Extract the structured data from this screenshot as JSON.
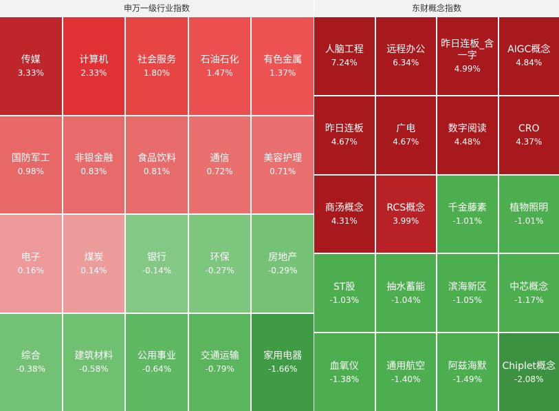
{
  "panels": [
    {
      "title": "申万一级行业指数",
      "tiles": [
        {
          "name": "传媒",
          "change": "3.33%",
          "color": "#bf262c"
        },
        {
          "name": "计算机",
          "change": "2.33%",
          "color": "#e03234"
        },
        {
          "name": "社会服务",
          "change": "1.80%",
          "color": "#e74444"
        },
        {
          "name": "石油石化",
          "change": "1.47%",
          "color": "#eb4f4f"
        },
        {
          "name": "有色金属",
          "change": "1.37%",
          "color": "#ed5353"
        },
        {
          "name": "国防军工",
          "change": "0.98%",
          "color": "#e86868"
        },
        {
          "name": "非银金融",
          "change": "0.83%",
          "color": "#e86b6b"
        },
        {
          "name": "食品饮料",
          "change": "0.81%",
          "color": "#e96c6c"
        },
        {
          "name": "通信",
          "change": "0.72%",
          "color": "#ea6f6f"
        },
        {
          "name": "美容护理",
          "change": "0.71%",
          "color": "#ea7070"
        },
        {
          "name": "电子",
          "change": "0.16%",
          "color": "#ee999b"
        },
        {
          "name": "煤炭",
          "change": "0.14%",
          "color": "#ee9b9c"
        },
        {
          "name": "银行",
          "change": "-0.14%",
          "color": "#83c985"
        },
        {
          "name": "环保",
          "change": "-0.27%",
          "color": "#7cc67e"
        },
        {
          "name": "房地产",
          "change": "-0.29%",
          "color": "#76c378"
        },
        {
          "name": "综合",
          "change": "-0.38%",
          "color": "#74c276"
        },
        {
          "name": "建筑材料",
          "change": "-0.58%",
          "color": "#70c072"
        },
        {
          "name": "公用事业",
          "change": "-0.64%",
          "color": "#5fb962"
        },
        {
          "name": "交通运输",
          "change": "-0.79%",
          "color": "#5ab55d"
        },
        {
          "name": "家用电器",
          "change": "-1.66%",
          "color": "#3f9c45"
        }
      ]
    },
    {
      "title": "东财概念指数",
      "tiles": [
        {
          "name": "人脑工程",
          "change": "7.24%",
          "color": "#a8191e"
        },
        {
          "name": "远程办公",
          "change": "6.34%",
          "color": "#a8191e"
        },
        {
          "name": "昨日连板_含一字",
          "change": "4.99%",
          "color": "#a8191e"
        },
        {
          "name": "AIGC概念",
          "change": "4.84%",
          "color": "#a8191e"
        },
        {
          "name": "昨日连板",
          "change": "4.67%",
          "color": "#a8191e"
        },
        {
          "name": "广电",
          "change": "4.67%",
          "color": "#a8191e"
        },
        {
          "name": "数字阅读",
          "change": "4.48%",
          "color": "#a8191e"
        },
        {
          "name": "CRO",
          "change": "4.37%",
          "color": "#a8191e"
        },
        {
          "name": "商汤概念",
          "change": "4.31%",
          "color": "#a8191e"
        },
        {
          "name": "RCS概念",
          "change": "3.99%",
          "color": "#b82227"
        },
        {
          "name": "千金藤素",
          "change": "-1.01%",
          "color": "#4cae4f"
        },
        {
          "name": "植物照明",
          "change": "-1.01%",
          "color": "#4cae4f"
        },
        {
          "name": "ST股",
          "change": "-1.03%",
          "color": "#4cae4f"
        },
        {
          "name": "抽水蓄能",
          "change": "-1.04%",
          "color": "#4cae4f"
        },
        {
          "name": "滨海新区",
          "change": "-1.05%",
          "color": "#4cae4f"
        },
        {
          "name": "中芯概念",
          "change": "-1.17%",
          "color": "#4cae4f"
        },
        {
          "name": "血氧仪",
          "change": "-1.38%",
          "color": "#4cae4f"
        },
        {
          "name": "通用航空",
          "change": "-1.40%",
          "color": "#4cae4f"
        },
        {
          "name": "阿兹海默",
          "change": "-1.49%",
          "color": "#4cae4f"
        },
        {
          "name": "Chiplet概念",
          "change": "-2.08%",
          "color": "#3c9241"
        }
      ]
    }
  ]
}
